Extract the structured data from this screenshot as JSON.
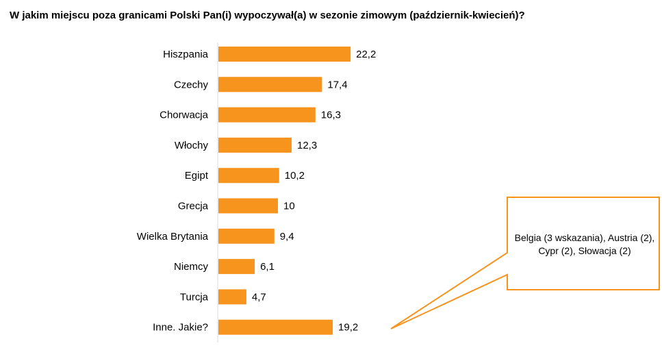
{
  "chart_data": {
    "type": "bar",
    "orientation": "horizontal",
    "title": "W jakim miejscu poza granicami Polski Pan(i) wypoczywał(a) w sezonie zimowym (październik-kwiecień)?",
    "categories": [
      "Hiszpania",
      "Czechy",
      "Chorwacja",
      "Włochy",
      "Egipt",
      "Grecja",
      "Wielka Brytania",
      "Niemcy",
      "Turcja",
      "Inne. Jakie?"
    ],
    "values": [
      22.2,
      17.4,
      16.3,
      12.3,
      10.2,
      10,
      9.4,
      6.1,
      4.7,
      19.2
    ],
    "value_labels": [
      "22,2",
      "17,4",
      "16,3",
      "12,3",
      "10,2",
      "10",
      "9,4",
      "6,1",
      "4,7",
      "19,2"
    ],
    "xlim": [
      0,
      100
    ],
    "grid": false,
    "bar_color": "#F7941D",
    "callout": {
      "text": "Belgia (3 wskazania), Austria (2), Cypr (2), Słowacja (2)",
      "points_to": "Inne. Jakie?",
      "border_color": "#F7941D"
    }
  }
}
